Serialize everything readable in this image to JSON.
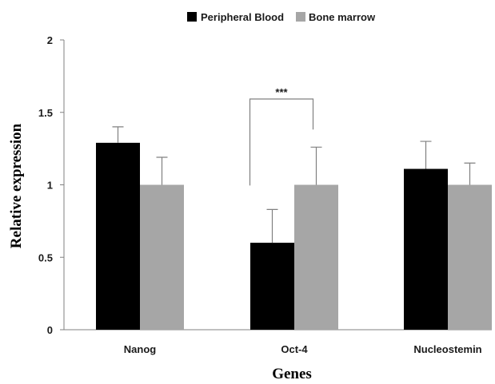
{
  "chart_data": {
    "type": "bar",
    "categories": [
      "Nanog",
      "Oct-4",
      "Nucleostemin"
    ],
    "series": [
      {
        "name": "Peripheral Blood",
        "color": "#000000",
        "values": [
          1.29,
          0.6,
          1.11
        ],
        "errors": [
          0.11,
          0.23,
          0.19
        ]
      },
      {
        "name": "Bone marrow",
        "color": "#a6a6a6",
        "values": [
          1.0,
          1.0,
          1.0
        ],
        "errors": [
          0.19,
          0.26,
          0.15
        ]
      }
    ],
    "xlabel": "Genes",
    "ylabel": "Relative expression",
    "ylim": [
      0,
      2
    ],
    "yticks": [
      0,
      0.5,
      1,
      1.5,
      2
    ],
    "ytick_labels": [
      "0",
      "0.5",
      "1",
      "1.5",
      "2"
    ],
    "grid": false,
    "legend_position": "top-center",
    "annotations": [
      {
        "text": "***",
        "category": "Oct-4",
        "between": [
          "Peripheral Blood",
          "Bone marrow"
        ]
      }
    ]
  }
}
